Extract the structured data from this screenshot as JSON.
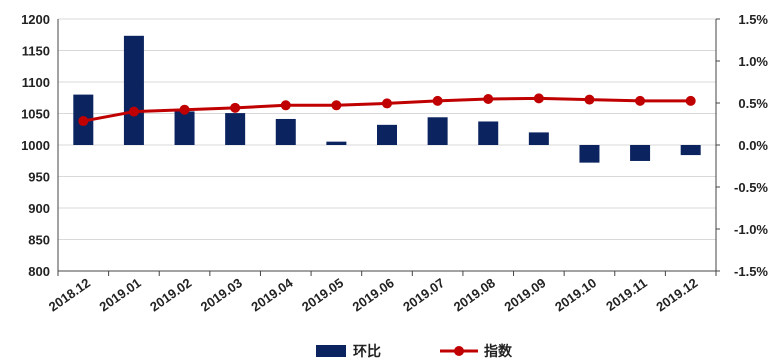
{
  "colors": {
    "bar": "#0b2460",
    "line": "#c00000",
    "grid": "#d9d9d9",
    "axis": "#444444"
  },
  "chart_data": {
    "type": "bar",
    "title": "",
    "xlabel": "",
    "ylabel": "",
    "categories": [
      "2018.12",
      "2019.01",
      "2019.02",
      "2019.03",
      "2019.04",
      "2019.05",
      "2019.06",
      "2019.07",
      "2019.08",
      "2019.09",
      "2019.10",
      "2019.11",
      "2019.12"
    ],
    "left_axis": {
      "ylim": [
        800,
        1200
      ],
      "ticks": [
        "800",
        "850",
        "900",
        "950",
        "1000",
        "1050",
        "1100",
        "1150",
        "1200"
      ],
      "tick_values": [
        800,
        850,
        900,
        950,
        1000,
        1050,
        1100,
        1150,
        1200
      ]
    },
    "right_axis": {
      "ylim": [
        -1.5,
        1.5
      ],
      "ticks": [
        "-1.5%",
        "-1.0%",
        "-0.5%",
        "0.0%",
        "0.5%",
        "1.0%",
        "1.5%"
      ],
      "tick_values": [
        -1.5,
        -1.0,
        -0.5,
        0.0,
        0.5,
        1.0,
        1.5
      ]
    },
    "series": [
      {
        "name": "环比",
        "type": "bar",
        "axis": "right",
        "unit": "%",
        "values": [
          0.6,
          1.3,
          0.4,
          0.38,
          0.31,
          0.04,
          0.24,
          0.33,
          0.28,
          0.15,
          -0.21,
          -0.19,
          -0.12
        ]
      },
      {
        "name": "指数",
        "type": "line",
        "axis": "left",
        "values": [
          1038,
          1053,
          1056,
          1059,
          1063,
          1063,
          1066,
          1070,
          1073,
          1074,
          1072,
          1070,
          1070
        ]
      }
    ],
    "grid": true,
    "legend": "bottom-center"
  }
}
